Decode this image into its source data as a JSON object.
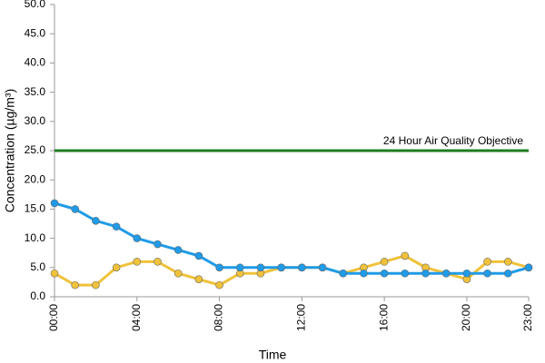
{
  "chart_data": {
    "type": "line",
    "x_label": "Time",
    "y_label": "Concentration (µg/m³)",
    "categories": [
      "00:00",
      null,
      null,
      null,
      "04:00",
      null,
      null,
      null,
      "08:00",
      null,
      null,
      null,
      "12:00",
      null,
      null,
      null,
      "16:00",
      null,
      null,
      null,
      "20:00",
      null,
      null,
      "23:00"
    ],
    "series": [
      {
        "color": "#1f9be8",
        "values": [
          16,
          15,
          13,
          12,
          10,
          9,
          8,
          7,
          5,
          5,
          5,
          5,
          5,
          5,
          4,
          4,
          4,
          4,
          4,
          4,
          4,
          4,
          4,
          5
        ]
      },
      {
        "color": "#f0c23a",
        "values": [
          4,
          2,
          2,
          5,
          6,
          6,
          4,
          3,
          2,
          4,
          4,
          5,
          5,
          5,
          4,
          5,
          6,
          7,
          5,
          4,
          3,
          6,
          6,
          5
        ]
      }
    ],
    "reference_line": {
      "value": 25,
      "label": "24 Hour Air Quality Objective",
      "color": "#1e7d1e"
    },
    "ylim": [
      0,
      50
    ],
    "yticks": [
      {
        "value": 0,
        "label": "0.0"
      },
      {
        "value": 5,
        "label": "5.0"
      },
      {
        "value": 10,
        "label": "10.0"
      },
      {
        "value": 15,
        "label": "15.0"
      },
      {
        "value": 20,
        "label": "20.0"
      },
      {
        "value": 25,
        "label": "25.0"
      },
      {
        "value": 30,
        "label": "30.0"
      },
      {
        "value": 35,
        "label": "35.0"
      },
      {
        "value": 40,
        "label": "40.0"
      },
      {
        "value": 45,
        "label": "45.0"
      },
      {
        "value": 50,
        "label": "50.0"
      }
    ]
  }
}
